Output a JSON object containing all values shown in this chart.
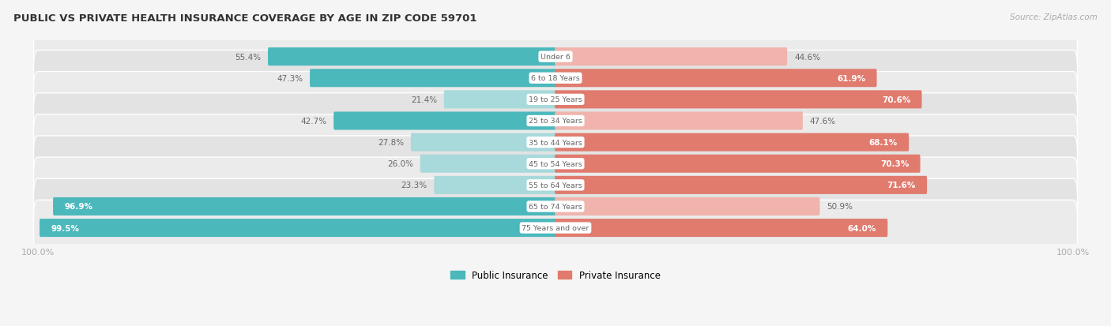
{
  "title": "PUBLIC VS PRIVATE HEALTH INSURANCE COVERAGE BY AGE IN ZIP CODE 59701",
  "source": "Source: ZipAtlas.com",
  "categories": [
    "Under 6",
    "6 to 18 Years",
    "19 to 25 Years",
    "25 to 34 Years",
    "35 to 44 Years",
    "45 to 54 Years",
    "55 to 64 Years",
    "65 to 74 Years",
    "75 Years and over"
  ],
  "public_values": [
    55.4,
    47.3,
    21.4,
    42.7,
    27.8,
    26.0,
    23.3,
    96.9,
    99.5
  ],
  "private_values": [
    44.6,
    61.9,
    70.6,
    47.6,
    68.1,
    70.3,
    71.6,
    50.9,
    64.0
  ],
  "public_color_strong": "#4bb8bc",
  "public_color_light": "#a8d9db",
  "private_color_strong": "#e07b6e",
  "private_color_light": "#f0b4ac",
  "bg_color": "#f5f5f5",
  "row_color_odd": "#f0f0f0",
  "row_color_even": "#e8e8e8",
  "center_label_bg": "#ffffff",
  "center_label_color": "#666666",
  "title_color": "#333333",
  "source_color": "#aaaaaa",
  "value_color_outside": "#666666",
  "value_color_inside": "#ffffff",
  "figsize": [
    14.06,
    4.14
  ],
  "dpi": 100
}
